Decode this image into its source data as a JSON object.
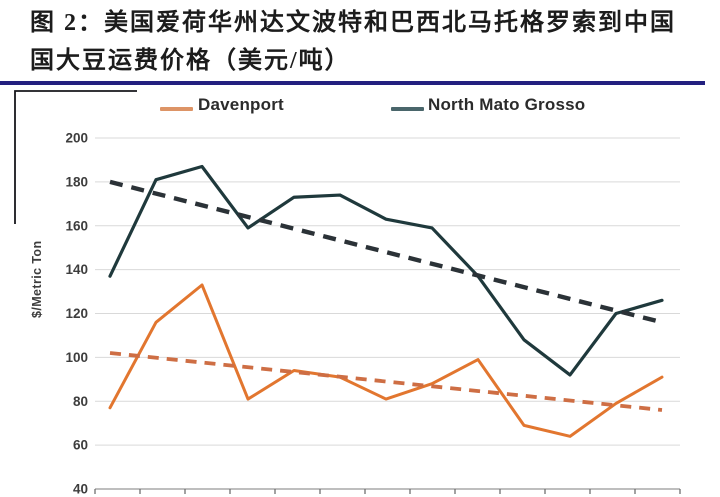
{
  "title": {
    "line1": "图 2：美国爱荷华州达文波特和巴西北马托格罗索到中国",
    "line2": "国大豆运费价格（美元/吨）",
    "underline_color": "#23207f"
  },
  "chart_data": {
    "type": "line",
    "title": "",
    "xlabel": "",
    "ylabel": "$/Metric Ton",
    "ylim": [
      40,
      200
    ],
    "yticks": [
      200,
      180,
      160,
      140,
      120,
      100,
      80,
      60,
      40
    ],
    "grid": "horizontal",
    "grid_color": "#d9d9d9",
    "axis_color": "#a8a8a8",
    "tick_color": "#6f6f6f",
    "note": "x-axis category labels are cropped out of the screenshot; 13 equally spaced points per series",
    "legend": {
      "position": "top",
      "entries": [
        {
          "label": "Davenport",
          "swatch_color": "#dd9466"
        },
        {
          "label": "North Mato Grosso",
          "swatch_color": "#4a666b"
        }
      ]
    },
    "series": [
      {
        "name": "Davenport",
        "style": "solid",
        "color": "#e2762f",
        "values": [
          77,
          116,
          133,
          81,
          94,
          91,
          81,
          88,
          99,
          69,
          64,
          79,
          91
        ]
      },
      {
        "name": "North Mato Grosso",
        "style": "solid",
        "color": "#1f393c",
        "values": [
          137,
          181,
          187,
          159,
          173,
          174,
          163,
          159,
          137,
          108,
          92,
          120,
          126
        ]
      },
      {
        "name": "Davenport trend",
        "style": "dashed",
        "color": "#ce6e44",
        "endpoints": [
          102,
          76
        ]
      },
      {
        "name": "North Mato Grosso trend",
        "style": "dashed",
        "color": "#2b3237",
        "endpoints": [
          180,
          116
        ]
      }
    ]
  }
}
